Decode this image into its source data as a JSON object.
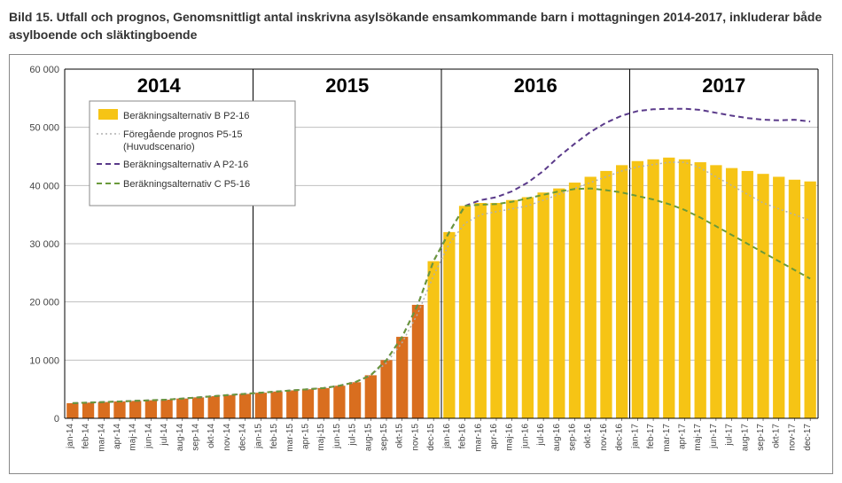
{
  "title": "Bild 15. Utfall och prognos, Genomsnittligt antal inskrivna asylsökande ensamkommande barn i mottagningen 2014-2017, inkluderar både asylboende och släktingboende",
  "chart": {
    "type": "bar+line",
    "background_color": "#ffffff",
    "plot_border_color": "#888888",
    "grid_color": "#bfbfbf",
    "axis_color": "#000000",
    "ylim": [
      0,
      60000
    ],
    "ytick_step": 10000,
    "ytick_labels": [
      "0",
      "10 000",
      "20 000",
      "30 000",
      "40 000",
      "50 000",
      "60 000"
    ],
    "year_labels": [
      "2014",
      "2015",
      "2016",
      "2017"
    ],
    "year_label_fontsize": 22,
    "x_tick_fontsize": 10,
    "y_tick_fontsize": 11,
    "months": [
      "jan-14",
      "feb-14",
      "mar-14",
      "apr-14",
      "maj-14",
      "jun-14",
      "jul-14",
      "aug-14",
      "sep-14",
      "okt-14",
      "nov-14",
      "dec-14",
      "jan-15",
      "feb-15",
      "mar-15",
      "apr-15",
      "maj-15",
      "jun-15",
      "jul-15",
      "aug-15",
      "sep-15",
      "okt-15",
      "nov-15",
      "dec-15",
      "jan-16",
      "feb-16",
      "mar-16",
      "apr-16",
      "maj-16",
      "jun-16",
      "jul-16",
      "aug-16",
      "sep-16",
      "okt-16",
      "nov-16",
      "dec-16",
      "jan-17",
      "feb-17",
      "mar-17",
      "apr-17",
      "maj-17",
      "jun-17",
      "jul-17",
      "aug-17",
      "sep-17",
      "okt-17",
      "nov-17",
      "dec-17"
    ],
    "bar_actual_color": "#d96e1f",
    "bar_forecast_color": "#f6c415",
    "bar_width_ratio": 0.75,
    "actual_count": 23,
    "bars": [
      2600,
      2700,
      2800,
      2900,
      3000,
      3100,
      3200,
      3400,
      3600,
      3800,
      4000,
      4200,
      4400,
      4600,
      4800,
      5000,
      5200,
      5600,
      6200,
      7400,
      10000,
      14000,
      19500,
      27000,
      32000,
      36500,
      37000,
      37000,
      37500,
      38000,
      38800,
      39500,
      40500,
      41500,
      42500,
      43500,
      44200,
      44500,
      44800,
      44500,
      44000,
      43500,
      43000,
      42500,
      42000,
      41500,
      41000,
      40700
    ],
    "series_prev_color": "#b0b0b0",
    "series_prev": [
      2600,
      2700,
      2800,
      2900,
      3000,
      3100,
      3200,
      3400,
      3600,
      3800,
      4000,
      4200,
      4400,
      4600,
      4800,
      5000,
      5200,
      5600,
      6200,
      7400,
      9500,
      13000,
      18000,
      24500,
      30000,
      33500,
      35000,
      35500,
      36000,
      36500,
      37500,
      38500,
      39500,
      40500,
      41500,
      42500,
      43200,
      43600,
      44000,
      44000,
      43000,
      41500,
      40000,
      38500,
      37000,
      36000,
      35000,
      34000
    ],
    "series_a_color": "#5a3a8a",
    "series_a": [
      2600,
      2700,
      2800,
      2900,
      3000,
      3100,
      3200,
      3400,
      3600,
      3800,
      4000,
      4200,
      4400,
      4600,
      4800,
      5000,
      5200,
      5600,
      6200,
      7400,
      10000,
      14000,
      19500,
      27000,
      32000,
      36500,
      37500,
      38000,
      39000,
      40500,
      42500,
      45000,
      47200,
      49200,
      50800,
      52000,
      52800,
      53100,
      53200,
      53200,
      53000,
      52500,
      52000,
      51600,
      51300,
      51200,
      51300,
      51000
    ],
    "series_c_color": "#6a9a3a",
    "series_c": [
      2600,
      2700,
      2800,
      2900,
      3000,
      3100,
      3200,
      3400,
      3600,
      3800,
      4000,
      4200,
      4400,
      4600,
      4800,
      5000,
      5200,
      5600,
      6200,
      7400,
      10000,
      14000,
      19500,
      27000,
      32000,
      36500,
      36700,
      36800,
      37200,
      37800,
      38400,
      39000,
      39400,
      39500,
      39200,
      38800,
      38200,
      37600,
      36800,
      35800,
      34500,
      33000,
      31500,
      30000,
      28500,
      27000,
      25500,
      24000
    ],
    "legend": {
      "box_fill": "#ffffff",
      "box_stroke": "#888888",
      "items": [
        {
          "kind": "bar",
          "color": "#f6c415",
          "label": "Beräkningsalternativ B P2-16"
        },
        {
          "kind": "dots",
          "color": "#b0b0b0",
          "label1": "Föregående prognos P5-15",
          "label2": "(Huvudscenario)"
        },
        {
          "kind": "dash",
          "color": "#5a3a8a",
          "label": "Beräkningsalternativ A P2-16"
        },
        {
          "kind": "dash",
          "color": "#6a9a3a",
          "label": "Beräkningsalternativ C P5-16"
        }
      ]
    }
  }
}
